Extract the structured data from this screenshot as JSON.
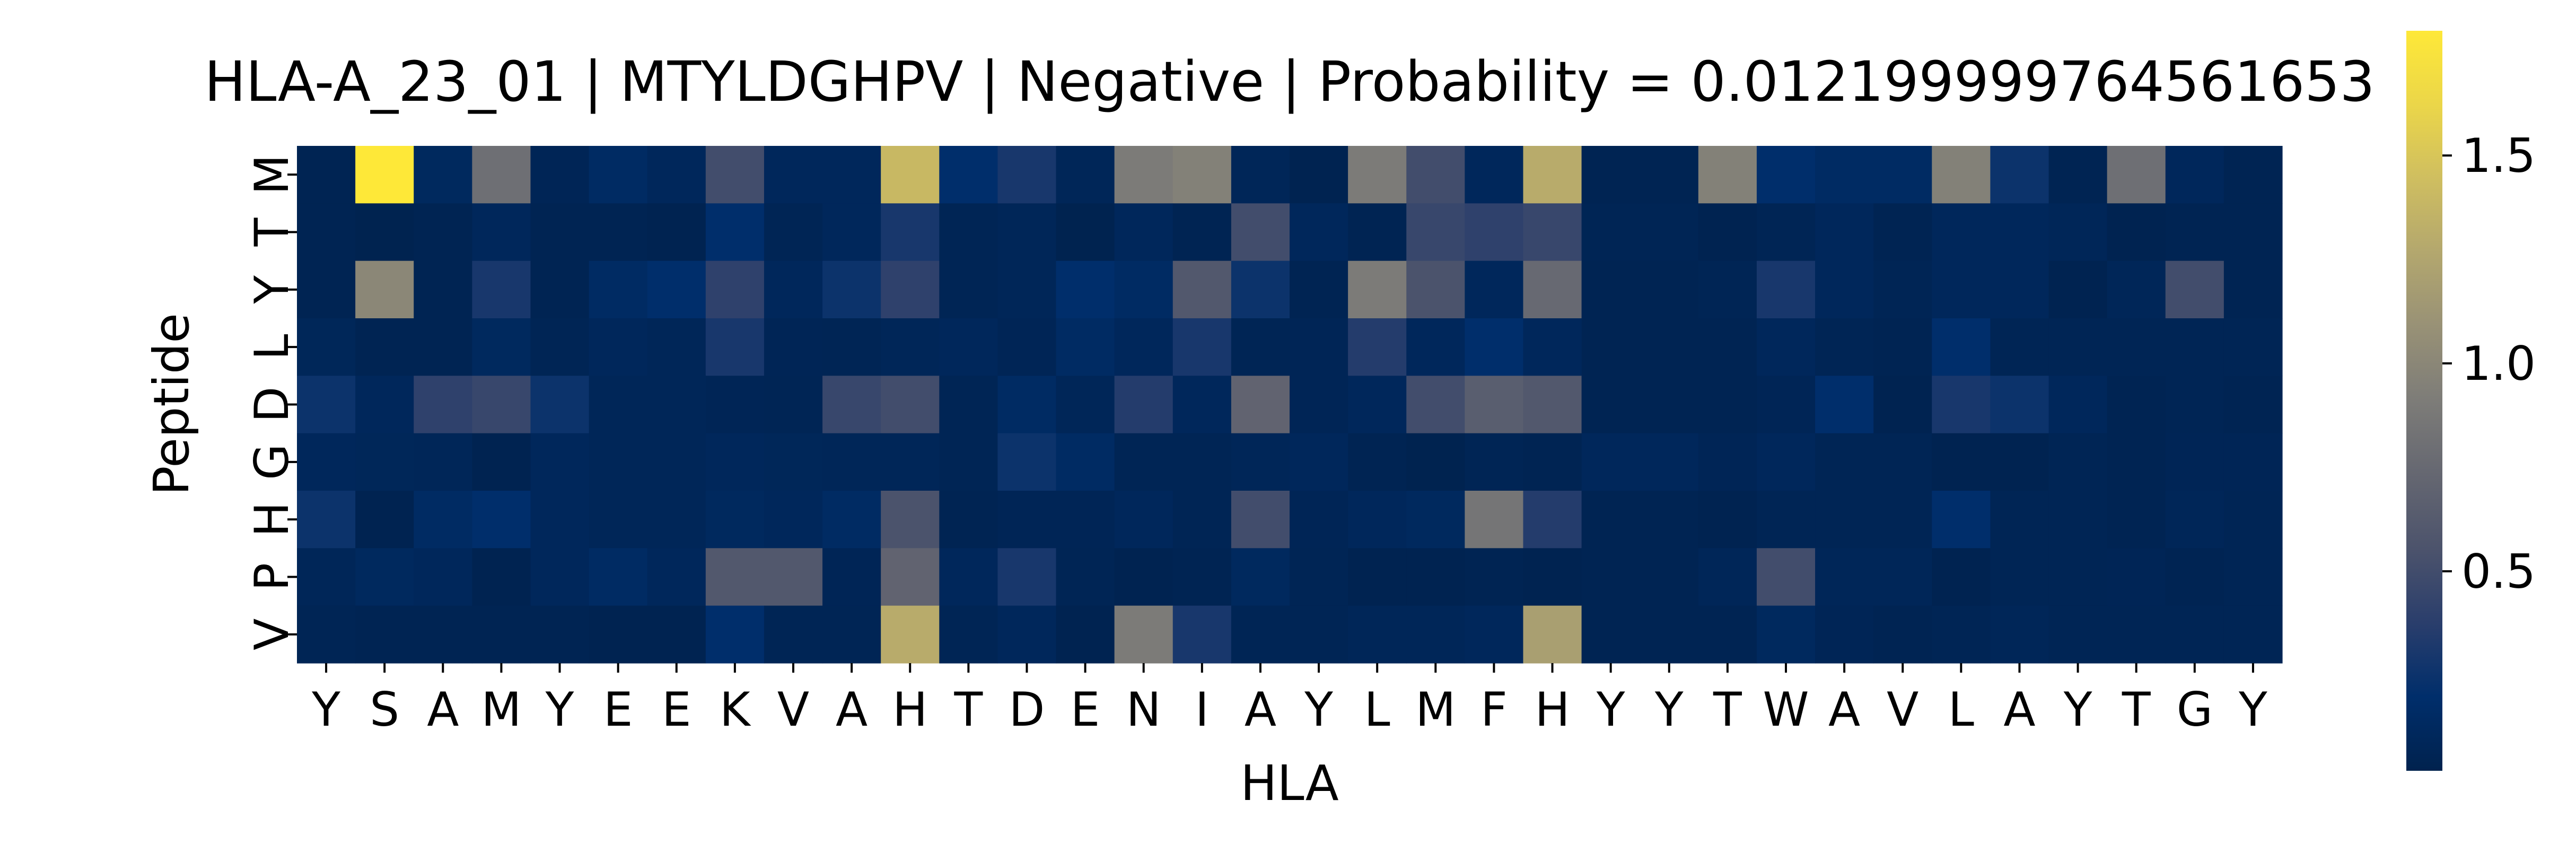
{
  "chart_data": {
    "type": "heatmap",
    "title": "HLA-A_23_01 | MTYLDGHPV | Negative | Probability = 0.012199999764561653",
    "xlabel": "HLA",
    "ylabel": "Peptide",
    "x_categories": [
      "Y",
      "S",
      "A",
      "M",
      "Y",
      "E",
      "E",
      "K",
      "V",
      "A",
      "H",
      "T",
      "D",
      "E",
      "N",
      "I",
      "A",
      "Y",
      "L",
      "M",
      "F",
      "H",
      "Y",
      "Y",
      "T",
      "W",
      "A",
      "V",
      "L",
      "A",
      "Y",
      "T",
      "G",
      "Y"
    ],
    "y_categories": [
      "M",
      "T",
      "Y",
      "L",
      "D",
      "G",
      "H",
      "P",
      "V"
    ],
    "colormap": "cividis",
    "colorbar": {
      "vmin": 0.02,
      "vmax": 1.8,
      "ticks": [
        0.5,
        1.0,
        1.5
      ],
      "tick_labels": [
        "0.5",
        "1.0",
        "1.5"
      ]
    },
    "values": [
      [
        0.05,
        1.8,
        0.12,
        0.8,
        0.07,
        0.15,
        0.1,
        0.5,
        0.1,
        0.1,
        1.4,
        0.2,
        0.3,
        0.08,
        0.9,
        0.95,
        0.08,
        0.04,
        0.9,
        0.5,
        0.1,
        1.3,
        0.05,
        0.05,
        0.95,
        0.2,
        0.15,
        0.15,
        0.95,
        0.25,
        0.05,
        0.8,
        0.1,
        0.05
      ],
      [
        0.05,
        0.03,
        0.05,
        0.1,
        0.05,
        0.05,
        0.04,
        0.2,
        0.06,
        0.1,
        0.3,
        0.06,
        0.08,
        0.03,
        0.1,
        0.05,
        0.5,
        0.1,
        0.05,
        0.45,
        0.4,
        0.45,
        0.06,
        0.06,
        0.04,
        0.06,
        0.1,
        0.05,
        0.1,
        0.1,
        0.08,
        0.04,
        0.05,
        0.05
      ],
      [
        0.05,
        1.0,
        0.05,
        0.3,
        0.05,
        0.15,
        0.2,
        0.4,
        0.1,
        0.25,
        0.4,
        0.06,
        0.08,
        0.2,
        0.15,
        0.6,
        0.25,
        0.05,
        0.9,
        0.55,
        0.1,
        0.75,
        0.05,
        0.05,
        0.06,
        0.3,
        0.1,
        0.06,
        0.1,
        0.1,
        0.04,
        0.08,
        0.5,
        0.05
      ],
      [
        0.09,
        0.05,
        0.05,
        0.12,
        0.06,
        0.1,
        0.08,
        0.3,
        0.07,
        0.06,
        0.08,
        0.1,
        0.07,
        0.15,
        0.1,
        0.3,
        0.06,
        0.07,
        0.35,
        0.1,
        0.2,
        0.1,
        0.05,
        0.05,
        0.05,
        0.1,
        0.06,
        0.05,
        0.2,
        0.06,
        0.06,
        0.06,
        0.06,
        0.06
      ],
      [
        0.25,
        0.1,
        0.4,
        0.45,
        0.25,
        0.08,
        0.08,
        0.07,
        0.06,
        0.45,
        0.5,
        0.06,
        0.15,
        0.08,
        0.35,
        0.1,
        0.7,
        0.07,
        0.1,
        0.5,
        0.65,
        0.6,
        0.05,
        0.05,
        0.05,
        0.07,
        0.2,
        0.04,
        0.3,
        0.25,
        0.1,
        0.05,
        0.06,
        0.05
      ],
      [
        0.1,
        0.09,
        0.08,
        0.04,
        0.1,
        0.08,
        0.08,
        0.1,
        0.09,
        0.08,
        0.08,
        0.06,
        0.25,
        0.15,
        0.06,
        0.06,
        0.08,
        0.1,
        0.05,
        0.03,
        0.06,
        0.05,
        0.1,
        0.1,
        0.07,
        0.1,
        0.06,
        0.06,
        0.04,
        0.04,
        0.06,
        0.05,
        0.07,
        0.07
      ],
      [
        0.25,
        0.04,
        0.15,
        0.2,
        0.1,
        0.08,
        0.08,
        0.12,
        0.1,
        0.15,
        0.55,
        0.05,
        0.07,
        0.07,
        0.1,
        0.06,
        0.5,
        0.07,
        0.1,
        0.12,
        0.85,
        0.35,
        0.05,
        0.05,
        0.04,
        0.06,
        0.06,
        0.06,
        0.2,
        0.06,
        0.06,
        0.05,
        0.08,
        0.06
      ],
      [
        0.08,
        0.12,
        0.1,
        0.04,
        0.1,
        0.15,
        0.1,
        0.6,
        0.6,
        0.07,
        0.7,
        0.1,
        0.3,
        0.06,
        0.04,
        0.05,
        0.12,
        0.06,
        0.04,
        0.04,
        0.05,
        0.04,
        0.05,
        0.05,
        0.08,
        0.5,
        0.08,
        0.08,
        0.04,
        0.06,
        0.06,
        0.07,
        0.05,
        0.06
      ],
      [
        0.06,
        0.05,
        0.05,
        0.05,
        0.05,
        0.04,
        0.04,
        0.2,
        0.06,
        0.06,
        1.3,
        0.06,
        0.1,
        0.04,
        0.9,
        0.3,
        0.06,
        0.06,
        0.08,
        0.08,
        0.1,
        1.2,
        0.05,
        0.05,
        0.05,
        0.12,
        0.07,
        0.05,
        0.06,
        0.08,
        0.06,
        0.06,
        0.06,
        0.06
      ]
    ]
  }
}
